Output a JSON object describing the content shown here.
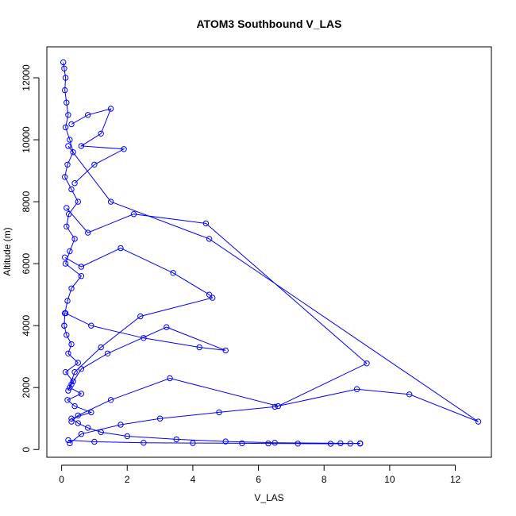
{
  "chart_data": {
    "type": "line",
    "title": "ATOM3 Southbound V_LAS",
    "xlabel": "V_LAS",
    "ylabel": "Altitude (m)",
    "xlim": [
      -0.45,
      13.1
    ],
    "ylim": [
      -250,
      13000
    ],
    "xticks": [
      0,
      2,
      4,
      6,
      8,
      10,
      12
    ],
    "yticks": [
      0,
      2000,
      4000,
      6000,
      8000,
      10000,
      12000
    ],
    "grid": false,
    "legend": "none",
    "marker": "open-circle",
    "color": "#0000FF",
    "series": [
      {
        "x": [
          0.05,
          0.08,
          0.12,
          0.1,
          0.15,
          0.2,
          0.12,
          0.25,
          0.35,
          0.18,
          0.1,
          0.3,
          0.5,
          0.22,
          0.15,
          0.4,
          0.25,
          0.12,
          0.6,
          0.3,
          0.18,
          0.1,
          0.08
        ],
        "y": [
          12500,
          12300,
          12000,
          11600,
          11200,
          10800,
          10400,
          10000,
          9600,
          9200,
          8800,
          8400,
          8000,
          7600,
          7200,
          6800,
          6400,
          6000,
          5600,
          5200,
          4800,
          4400,
          4000
        ]
      },
      {
        "x": [
          0.08,
          0.15,
          0.3,
          0.2,
          0.5,
          0.12,
          0.35,
          0.25,
          0.6,
          0.18,
          0.4,
          0.9,
          0.3,
          0.5,
          0.8,
          1.2,
          2.0,
          3.5,
          5.0,
          6.5,
          8.5,
          9.1
        ],
        "y": [
          4000,
          3700,
          3400,
          3100,
          2800,
          2500,
          2200,
          2000,
          1800,
          1600,
          1400,
          1200,
          1000,
          850,
          700,
          560,
          430,
          330,
          260,
          220,
          200,
          190
        ]
      },
      {
        "x": [
          0.2,
          1.5,
          4.5,
          12.7,
          10.6,
          9.0,
          6.5,
          4.8,
          3.0,
          1.8,
          0.6,
          0.25
        ],
        "y": [
          9800,
          8000,
          6800,
          900,
          1780,
          1950,
          1380,
          1200,
          1000,
          800,
          500,
          200
        ]
      },
      {
        "x": [
          0.15,
          0.8,
          2.2,
          4.4,
          9.3,
          6.6,
          3.3,
          1.5,
          0.5,
          0.3
        ],
        "y": [
          7800,
          7000,
          7600,
          7300,
          2780,
          1400,
          2300,
          1600,
          1100,
          900
        ]
      },
      {
        "x": [
          0.1,
          0.6,
          1.8,
          3.4,
          4.5,
          4.6,
          2.4,
          1.2,
          0.4,
          0.2
        ],
        "y": [
          6200,
          5900,
          6500,
          5700,
          5000,
          4900,
          4300,
          3300,
          2500,
          1900
        ]
      },
      {
        "x": [
          0.12,
          0.9,
          2.5,
          4.2,
          5.0,
          3.2,
          1.4,
          0.6,
          0.3
        ],
        "y": [
          4400,
          4000,
          3600,
          3300,
          3200,
          3950,
          3100,
          2600,
          2100
        ]
      },
      {
        "x": [
          0.3,
          0.8,
          1.5,
          1.2,
          0.6,
          1.9,
          1.0,
          0.4
        ],
        "y": [
          10500,
          10800,
          11000,
          10200,
          9800,
          9700,
          9200,
          8600
        ]
      },
      {
        "x": [
          0.2,
          1.0,
          2.5,
          4.0,
          5.5,
          6.3,
          7.2,
          8.2,
          8.8,
          9.1
        ],
        "y": [
          300,
          250,
          220,
          210,
          200,
          195,
          190,
          185,
          190,
          200
        ]
      }
    ]
  }
}
